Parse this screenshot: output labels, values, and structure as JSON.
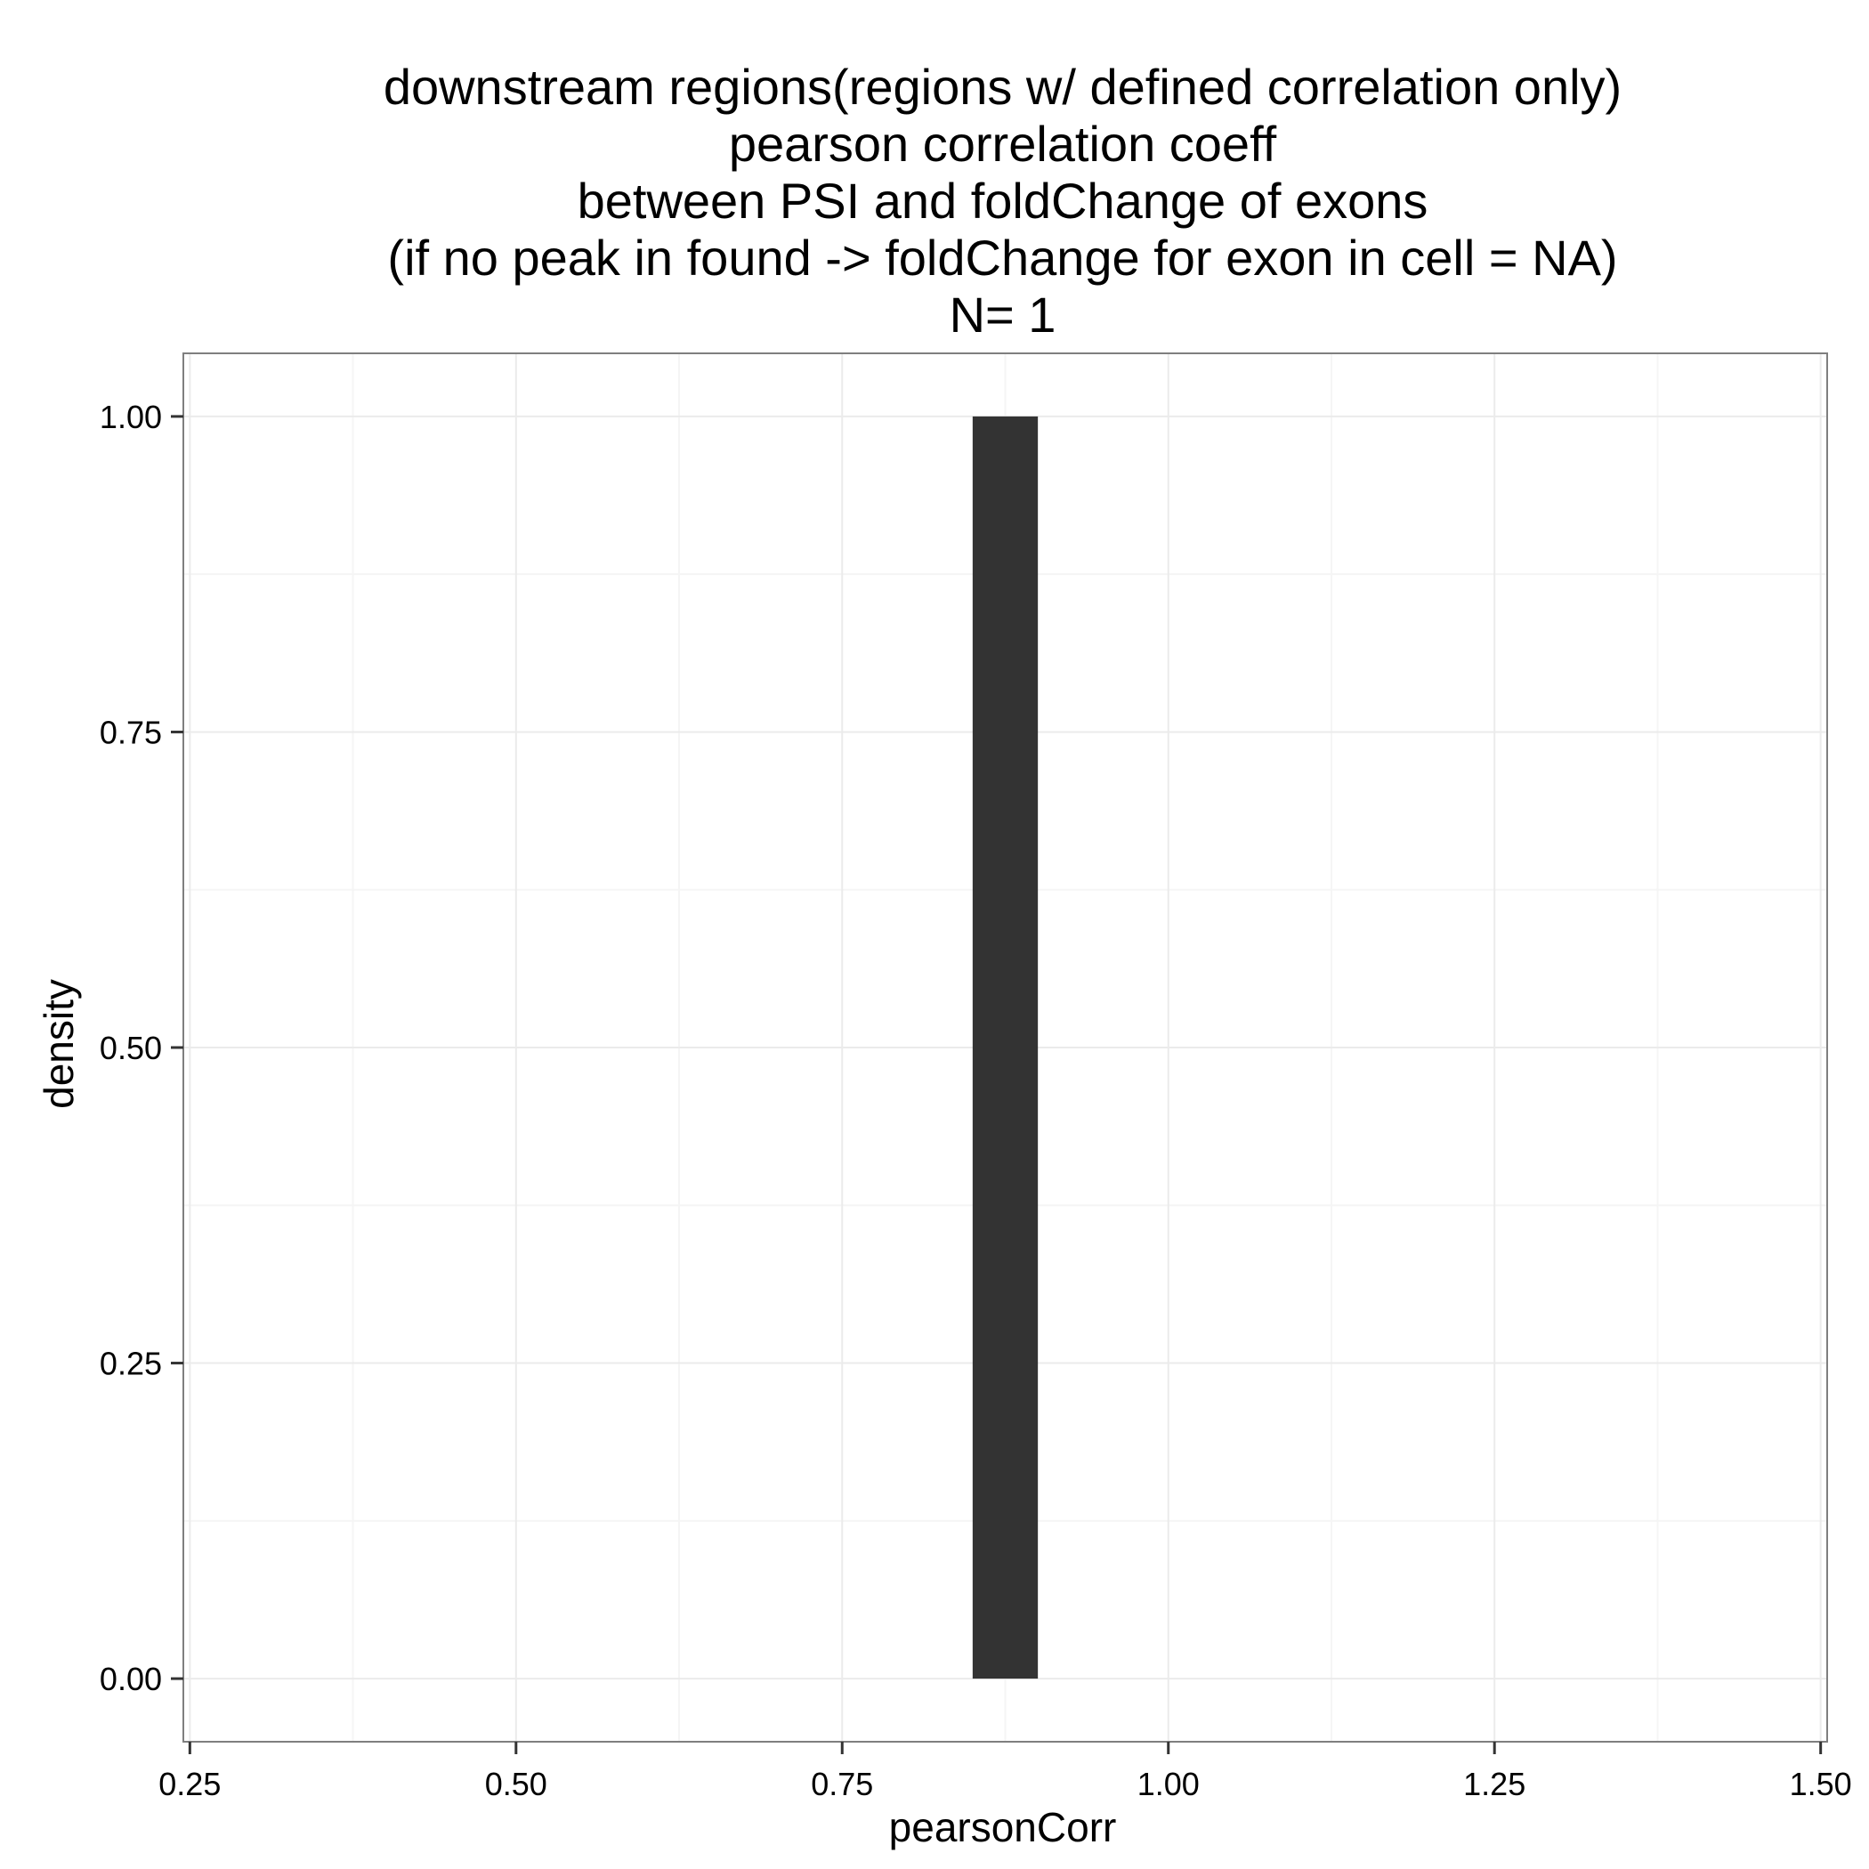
{
  "chart_data": {
    "type": "bar",
    "title_lines": [
      "downstream regions(regions w/ defined correlation only)",
      "pearson correlation coeff",
      "between PSI and foldChange of  exons",
      "(if no peak in found  -> foldChange for exon in cell = NA)",
      "N= 1"
    ],
    "xlabel": "pearsonCorr",
    "ylabel": "density",
    "xlim": [
      0.245,
      1.505
    ],
    "ylim": [
      -0.05,
      1.05
    ],
    "x_ticks": [
      0.25,
      0.5,
      0.75,
      1.0,
      1.25,
      1.5
    ],
    "x_tick_labels": [
      "0.25",
      "0.50",
      "0.75",
      "1.00",
      "1.25",
      "1.50"
    ],
    "y_ticks": [
      0.0,
      0.25,
      0.5,
      0.75,
      1.0
    ],
    "y_tick_labels": [
      "0.00",
      "0.25",
      "0.50",
      "0.75",
      "1.00"
    ],
    "bars": [
      {
        "xmin": 0.85,
        "xmax": 0.9,
        "value": 1.0
      }
    ],
    "grid": true,
    "bar_color": "#333333",
    "grid_major_color": "#ebebeb",
    "grid_minor_color": "#f5f5f5",
    "panel_border_color": "#7f7f7f"
  }
}
